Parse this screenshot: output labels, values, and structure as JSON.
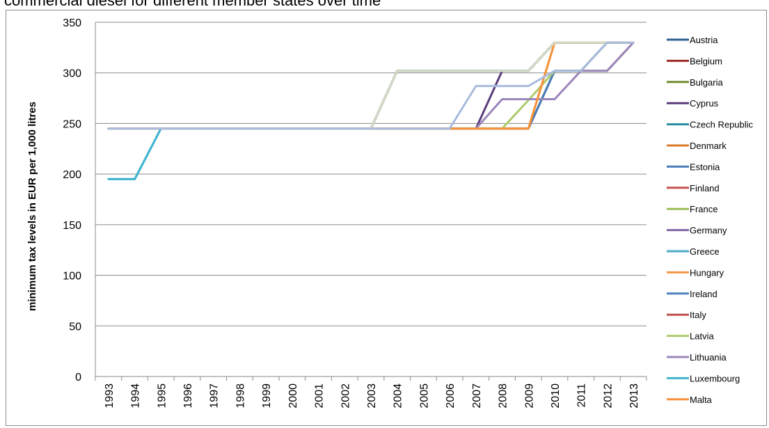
{
  "chart_data": {
    "type": "line",
    "title": "commercial diesel for different member states over time",
    "xlabel": "",
    "ylabel": "minimum tax levels in EUR per 1,000 litres",
    "x": [
      "1993",
      "1994",
      "1995",
      "1996",
      "1997",
      "1998",
      "1999",
      "2000",
      "2001",
      "2002",
      "2003",
      "2004",
      "2005",
      "2006",
      "2007",
      "2008",
      "2009",
      "2010",
      "2011",
      "2012",
      "2013"
    ],
    "ylim": [
      0,
      350
    ],
    "yticks": [
      "0",
      "50",
      "100",
      "150",
      "200",
      "250",
      "300",
      "350"
    ],
    "grid": true,
    "legend_position": "right",
    "series": [
      {
        "name": "Austria",
        "color": "#2f5f8f",
        "values": [
          245,
          245,
          245,
          245,
          245,
          245,
          245,
          245,
          245,
          245,
          245,
          302,
          302,
          302,
          302,
          302,
          302,
          330,
          330,
          330,
          330
        ]
      },
      {
        "name": "Belgium",
        "color": "#9b2d2a",
        "values": [
          245,
          245,
          245,
          245,
          245,
          245,
          245,
          245,
          245,
          245,
          245,
          302,
          302,
          302,
          302,
          302,
          302,
          330,
          330,
          330,
          330
        ]
      },
      {
        "name": "Bulgaria",
        "color": "#6e8b2f",
        "values": [
          245,
          245,
          245,
          245,
          245,
          245,
          245,
          245,
          245,
          245,
          245,
          245,
          245,
          245,
          245,
          245,
          245,
          302,
          302,
          302,
          330
        ]
      },
      {
        "name": "Cyprus",
        "color": "#5a3d7a",
        "values": [
          245,
          245,
          245,
          245,
          245,
          245,
          245,
          245,
          245,
          245,
          245,
          245,
          245,
          245,
          245,
          302,
          302,
          330,
          330,
          330,
          330
        ]
      },
      {
        "name": "Czech Republic",
        "color": "#2a8ca0",
        "values": [
          245,
          245,
          245,
          245,
          245,
          245,
          245,
          245,
          245,
          245,
          245,
          245,
          245,
          245,
          245,
          245,
          245,
          302,
          302,
          330,
          330
        ]
      },
      {
        "name": "Denmark",
        "color": "#d9792a",
        "values": [
          245,
          245,
          245,
          245,
          245,
          245,
          245,
          245,
          245,
          245,
          245,
          302,
          302,
          302,
          302,
          302,
          302,
          330,
          330,
          330,
          330
        ]
      },
      {
        "name": "Estonia",
        "color": "#4a7ab8",
        "values": [
          245,
          245,
          245,
          245,
          245,
          245,
          245,
          245,
          245,
          245,
          245,
          245,
          245,
          245,
          245,
          245,
          245,
          302,
          302,
          330,
          330
        ]
      },
      {
        "name": "Finland",
        "color": "#c2504d",
        "values": [
          245,
          245,
          245,
          245,
          245,
          245,
          245,
          245,
          245,
          245,
          245,
          302,
          302,
          302,
          302,
          302,
          302,
          330,
          330,
          330,
          330
        ]
      },
      {
        "name": "France",
        "color": "#9bbb59",
        "values": [
          245,
          245,
          245,
          245,
          245,
          245,
          245,
          245,
          245,
          245,
          245,
          302,
          302,
          302,
          302,
          302,
          302,
          330,
          330,
          330,
          330
        ]
      },
      {
        "name": "Germany",
        "color": "#8064a2",
        "values": [
          245,
          245,
          245,
          245,
          245,
          245,
          245,
          245,
          245,
          245,
          245,
          302,
          302,
          302,
          302,
          302,
          302,
          330,
          330,
          330,
          330
        ]
      },
      {
        "name": "Greece",
        "color": "#4bacc6",
        "values": [
          195,
          195,
          245,
          245,
          245,
          245,
          245,
          245,
          245,
          245,
          245,
          302,
          302,
          302,
          302,
          302,
          302,
          330,
          330,
          330,
          330
        ]
      },
      {
        "name": "Hungary",
        "color": "#f79646",
        "values": [
          245,
          245,
          245,
          245,
          245,
          245,
          245,
          245,
          245,
          245,
          245,
          245,
          245,
          245,
          245,
          245,
          245,
          330,
          330,
          330,
          330
        ]
      },
      {
        "name": "Ireland",
        "color": "#4f81bd",
        "values": [
          245,
          245,
          245,
          245,
          245,
          245,
          245,
          245,
          245,
          245,
          245,
          302,
          302,
          302,
          302,
          302,
          302,
          330,
          330,
          330,
          330
        ]
      },
      {
        "name": "Italy",
        "color": "#c0504d",
        "values": [
          245,
          245,
          245,
          245,
          245,
          245,
          245,
          245,
          245,
          245,
          245,
          302,
          302,
          302,
          302,
          302,
          302,
          330,
          330,
          330,
          330
        ]
      },
      {
        "name": "Latvia",
        "color": "#aecb6b",
        "values": [
          245,
          245,
          245,
          245,
          245,
          245,
          245,
          245,
          245,
          245,
          245,
          245,
          245,
          245,
          245,
          245,
          273,
          302,
          302,
          330,
          330
        ]
      },
      {
        "name": "Lithuania",
        "color": "#9b86bb",
        "values": [
          245,
          245,
          245,
          245,
          245,
          245,
          245,
          245,
          245,
          245,
          245,
          245,
          245,
          245,
          245,
          274,
          274,
          274,
          302,
          302,
          330
        ]
      },
      {
        "name": "Luxembourg",
        "color": "#3fb4cf",
        "values": [
          195,
          195,
          245,
          245,
          245,
          245,
          245,
          245,
          245,
          245,
          245,
          302,
          302,
          302,
          302,
          302,
          302,
          330,
          330,
          330,
          330
        ]
      },
      {
        "name": "Malta",
        "color": "#f7923a",
        "values": [
          245,
          245,
          245,
          245,
          245,
          245,
          245,
          245,
          245,
          245,
          245,
          245,
          245,
          245,
          245,
          245,
          245,
          330,
          330,
          330,
          330
        ]
      }
    ],
    "extra_lines": [
      {
        "color": "#d6dcc6",
        "values": [
          245,
          245,
          245,
          245,
          245,
          245,
          245,
          245,
          245,
          245,
          245,
          302,
          302,
          302,
          302,
          302,
          302,
          330,
          330,
          330,
          330
        ]
      },
      {
        "color": "#a9bbdd",
        "values": [
          245,
          245,
          245,
          245,
          245,
          245,
          245,
          245,
          245,
          245,
          245,
          245,
          245,
          245,
          287,
          287,
          287,
          302,
          302,
          330,
          330
        ]
      }
    ]
  }
}
